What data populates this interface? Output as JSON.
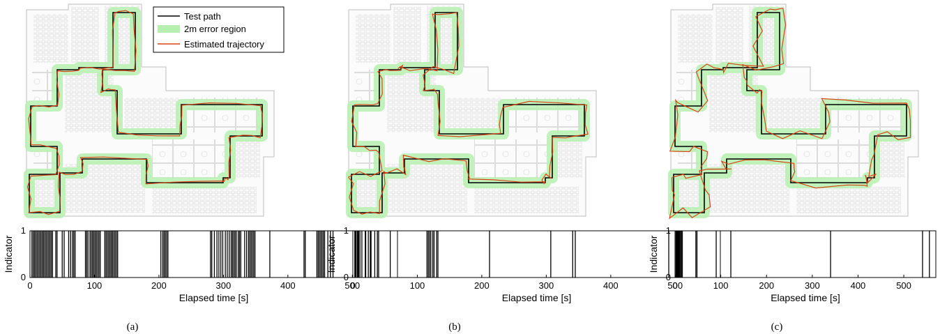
{
  "colors": {
    "test_path": "#000000",
    "error_region": "#b6f0b0",
    "estimated": "#d84315",
    "floorplan": "#c8c8c8",
    "indicator_bar": "#000000"
  },
  "legend": {
    "items": [
      {
        "label": "Test path",
        "style": "line",
        "color": "#000000"
      },
      {
        "label": "2m error region",
        "style": "band",
        "color": "#b6f0b0"
      },
      {
        "label": "Estimated trajectory",
        "style": "line",
        "color": "#d84315"
      }
    ]
  },
  "panels": [
    {
      "caption": "(a)",
      "trajectory_variant": "close"
    },
    {
      "caption": "(b)",
      "trajectory_variant": "medium"
    },
    {
      "caption": "(c)",
      "trajectory_variant": "sparse"
    }
  ],
  "chart_data": [
    {
      "type": "bar",
      "subtype": "event-indicator",
      "panel": "(a)",
      "xlabel": "Elapsed time [s]",
      "ylabel": "Indicator",
      "xlim": [
        0,
        570
      ],
      "ylim": [
        0,
        1
      ],
      "xticks": [
        0,
        100,
        200,
        300,
        400,
        500
      ],
      "yticks": [
        0,
        1
      ],
      "grid": false,
      "events": [
        3,
        5,
        7,
        9,
        11,
        13,
        15,
        17,
        19,
        21,
        23,
        25,
        27,
        29,
        31,
        33,
        35,
        40,
        42,
        50,
        53,
        60,
        63,
        66,
        68,
        70,
        86,
        88,
        90,
        93,
        95,
        97,
        99,
        101,
        103,
        105,
        107,
        109,
        116,
        118,
        120,
        122,
        124,
        126,
        128,
        130,
        132,
        134,
        136,
        203,
        206,
        208,
        210,
        212,
        214,
        280,
        282,
        286,
        290,
        293,
        296,
        299,
        303,
        306,
        309,
        312,
        314,
        316,
        318,
        320,
        323,
        325,
        327,
        333,
        336,
        339,
        341,
        343,
        345,
        347,
        349,
        372,
        425,
        427,
        445,
        447,
        449,
        451,
        453,
        455,
        457,
        462,
        466,
        470,
        505,
        509,
        520,
        529
      ]
    },
    {
      "type": "bar",
      "subtype": "event-indicator",
      "panel": "(b)",
      "xlabel": "Elapsed time [s]",
      "ylabel": "Indicator",
      "xlim": [
        0,
        570
      ],
      "ylim": [
        0,
        1
      ],
      "xticks": [
        0,
        100,
        200,
        300,
        400,
        500
      ],
      "yticks": [
        0,
        1
      ],
      "grid": false,
      "events": [
        3,
        5,
        7,
        9,
        11,
        14,
        20,
        24,
        27,
        34,
        38,
        40,
        58,
        115,
        117,
        119,
        121,
        124,
        126,
        130,
        132,
        212,
        307,
        341,
        345,
        490,
        532
      ]
    },
    {
      "type": "bar",
      "subtype": "event-indicator",
      "panel": "(c)",
      "xlabel": "Elapsed time [s]",
      "ylabel": "Indicator",
      "xlim": [
        0,
        570
      ],
      "ylim": [
        0,
        1
      ],
      "xticks": [
        0,
        100,
        200,
        300,
        400,
        500
      ],
      "yticks": [
        0,
        1
      ],
      "grid": false,
      "events": [
        2,
        3,
        4,
        5,
        6,
        7,
        8,
        9,
        10,
        12,
        14,
        16,
        48,
        90,
        122,
        340,
        541,
        556
      ]
    }
  ]
}
